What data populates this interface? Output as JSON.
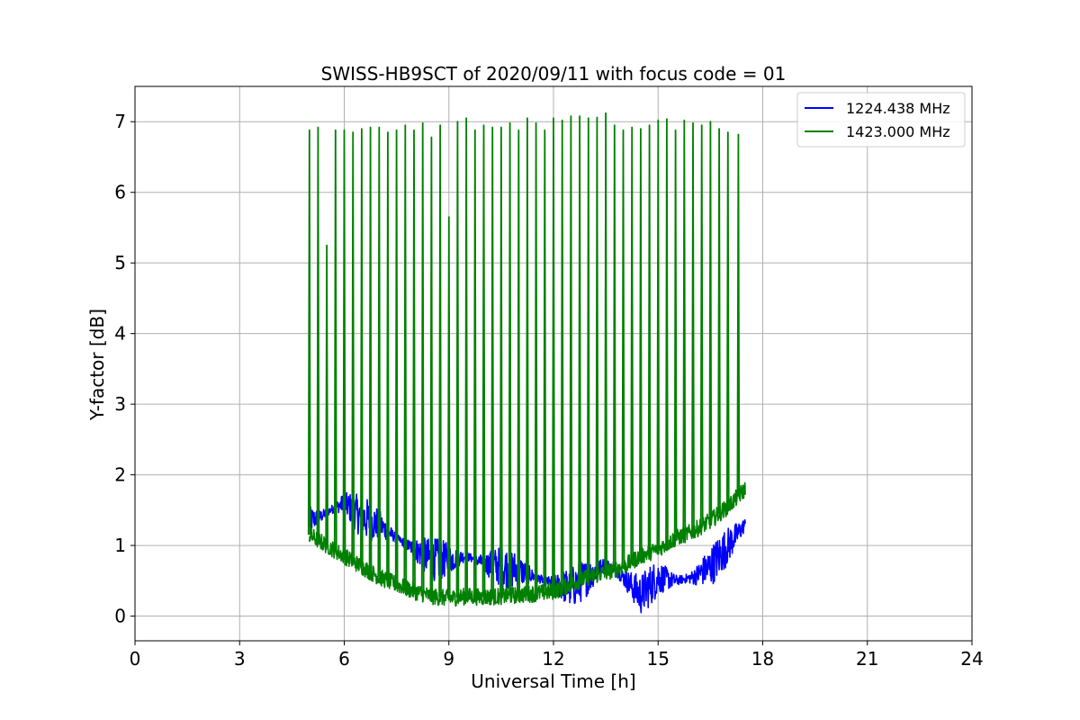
{
  "chart_data": {
    "type": "line",
    "title": "SWISS-HB9SCT of 2020/09/11 with focus code = 01",
    "xlabel": "Universal Time [h]",
    "ylabel": "Y-factor [dB]",
    "xlim": [
      0,
      24
    ],
    "ylim": [
      -0.35,
      7.5
    ],
    "xticks": [
      0,
      3,
      6,
      9,
      12,
      15,
      18,
      21,
      24
    ],
    "yticks": [
      0,
      1,
      2,
      3,
      4,
      5,
      6,
      7
    ],
    "grid": true,
    "legend_position": "top-right",
    "series": [
      {
        "name": "1224.438 MHz",
        "color": "#0000ff",
        "x": [
          5.0,
          5.3,
          5.6,
          6.0,
          6.5,
          7.0,
          7.5,
          8.0,
          8.5,
          9.0,
          9.5,
          10.0,
          10.5,
          11.0,
          11.5,
          12.0,
          12.5,
          13.0,
          13.5,
          14.0,
          14.5,
          15.0,
          15.5,
          16.0,
          16.5,
          17.0,
          17.5
        ],
        "values": [
          1.35,
          1.4,
          1.5,
          1.6,
          1.4,
          1.3,
          1.1,
          0.95,
          0.8,
          0.8,
          0.85,
          0.75,
          0.7,
          0.65,
          0.55,
          0.45,
          0.4,
          0.55,
          0.75,
          0.55,
          0.3,
          0.55,
          0.5,
          0.55,
          0.7,
          1.0,
          1.3
        ]
      },
      {
        "name": "1423.000 MHz",
        "color": "#008000",
        "x": [
          5.0,
          5.5,
          6.0,
          6.5,
          7.0,
          7.5,
          8.0,
          8.5,
          9.0,
          9.5,
          10.0,
          10.5,
          11.0,
          11.5,
          12.0,
          12.5,
          13.0,
          13.5,
          14.0,
          14.5,
          15.0,
          15.5,
          16.0,
          16.5,
          17.0,
          17.5
        ],
        "values": [
          1.15,
          1.0,
          0.85,
          0.7,
          0.55,
          0.45,
          0.35,
          0.28,
          0.25,
          0.28,
          0.27,
          0.28,
          0.3,
          0.32,
          0.35,
          0.45,
          0.55,
          0.62,
          0.7,
          0.85,
          0.95,
          1.1,
          1.2,
          1.35,
          1.55,
          1.8
        ],
        "spikes": {
          "x": [
            5.0,
            5.25,
            5.5,
            5.75,
            6.0,
            6.25,
            6.5,
            6.75,
            7.0,
            7.25,
            7.5,
            7.75,
            8.0,
            8.25,
            8.5,
            8.75,
            9.0,
            9.25,
            9.5,
            9.75,
            10.0,
            10.25,
            10.5,
            10.75,
            11.0,
            11.25,
            11.5,
            11.75,
            12.0,
            12.25,
            12.5,
            12.75,
            13.0,
            13.25,
            13.5,
            13.75,
            14.0,
            14.25,
            14.5,
            14.75,
            15.0,
            15.25,
            15.5,
            15.75,
            16.0,
            16.25,
            16.5,
            16.75,
            17.0,
            17.3
          ],
          "peaks": [
            6.88,
            6.92,
            5.25,
            6.88,
            6.88,
            6.85,
            6.9,
            6.92,
            6.92,
            6.85,
            6.88,
            6.95,
            6.88,
            6.98,
            6.78,
            6.95,
            5.65,
            7.0,
            7.05,
            6.88,
            6.95,
            6.92,
            6.92,
            6.98,
            6.88,
            7.05,
            6.98,
            6.88,
            7.05,
            7.02,
            7.08,
            7.08,
            7.05,
            7.06,
            7.12,
            6.95,
            6.88,
            6.92,
            6.9,
            6.95,
            7.02,
            7.04,
            6.88,
            7.02,
            6.98,
            6.95,
            7.0,
            6.9,
            6.85,
            6.82
          ]
        }
      }
    ]
  }
}
